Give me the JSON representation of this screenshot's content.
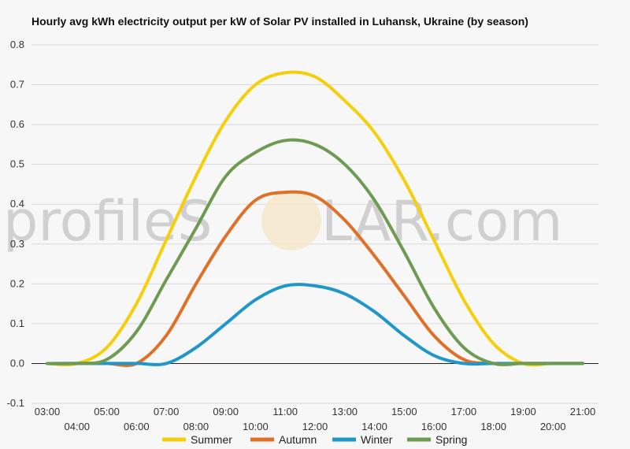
{
  "chart_data": {
    "type": "line",
    "title": "Hourly avg kWh electricity output per kW of Solar PV installed in Luhansk, Ukraine (by season)",
    "xlabel": "",
    "ylabel": "",
    "x": [
      "03:00",
      "04:00",
      "05:00",
      "06:00",
      "07:00",
      "08:00",
      "09:00",
      "10:00",
      "11:00",
      "12:00",
      "13:00",
      "14:00",
      "15:00",
      "16:00",
      "17:00",
      "18:00",
      "19:00",
      "20:00",
      "21:00"
    ],
    "ylim": [
      -0.1,
      0.8
    ],
    "yticks": [
      "0.8",
      "0.7",
      "0.6",
      "0.5",
      "0.4",
      "0.3",
      "0.2",
      "0.1",
      "0.0",
      "-0.1"
    ],
    "legend_position": "bottom",
    "grid": true,
    "series": [
      {
        "name": "Summer",
        "color": "#f5cf0c",
        "values": [
          0,
          0,
          0.04,
          0.15,
          0.31,
          0.47,
          0.61,
          0.7,
          0.73,
          0.72,
          0.66,
          0.58,
          0.46,
          0.31,
          0.16,
          0.05,
          0.0,
          0,
          0
        ]
      },
      {
        "name": "Autumn",
        "color": "#e07028",
        "values": [
          0,
          0,
          0,
          0,
          0.07,
          0.2,
          0.32,
          0.41,
          0.43,
          0.42,
          0.36,
          0.27,
          0.17,
          0.07,
          0.01,
          0,
          0,
          0,
          0
        ]
      },
      {
        "name": "Winter",
        "color": "#1f97c9",
        "values": [
          0,
          0,
          0,
          0,
          0,
          0.04,
          0.1,
          0.16,
          0.195,
          0.195,
          0.175,
          0.13,
          0.07,
          0.02,
          0,
          0,
          0,
          0,
          0
        ]
      },
      {
        "name": "Spring",
        "color": "#6e9b52",
        "values": [
          0,
          0,
          0.01,
          0.08,
          0.21,
          0.34,
          0.47,
          0.53,
          0.56,
          0.55,
          0.5,
          0.41,
          0.28,
          0.14,
          0.04,
          0,
          0,
          0,
          0
        ]
      }
    ]
  },
  "watermark": {
    "left": "profileS",
    "right": "LAR.com"
  }
}
